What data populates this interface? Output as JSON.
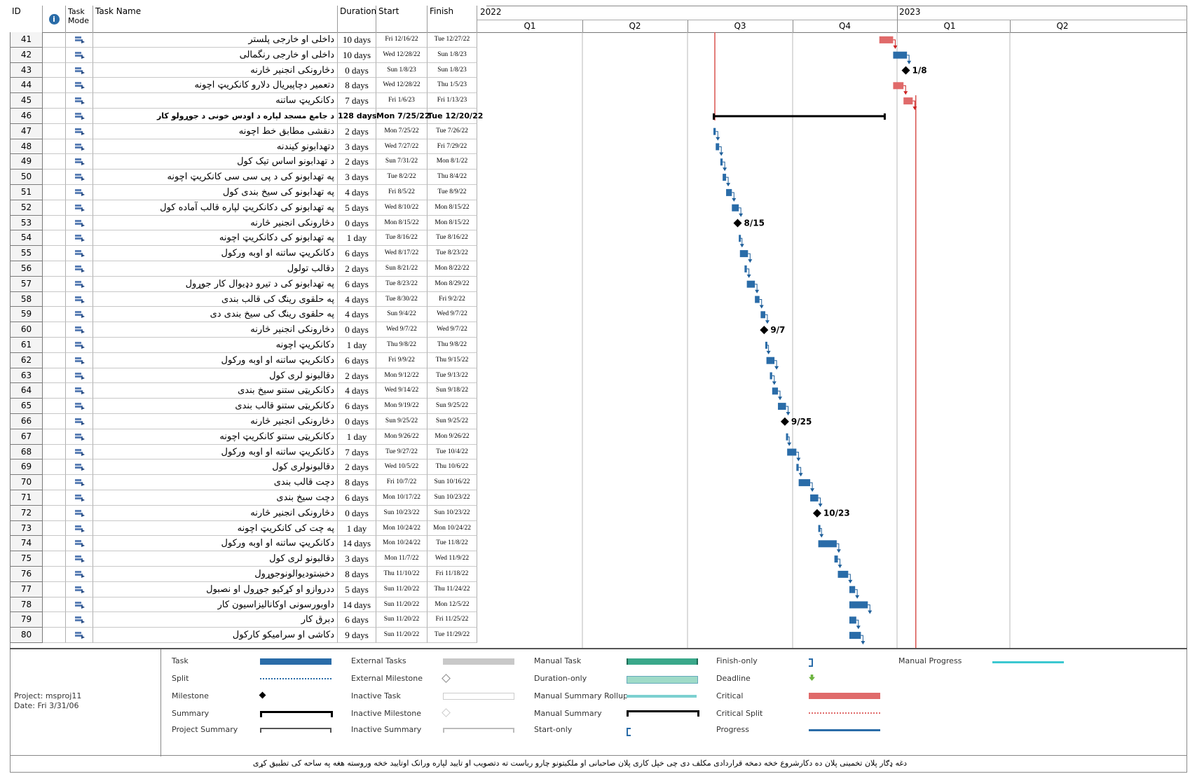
{
  "columns": {
    "id": "ID",
    "indicators": "ℹ",
    "mode": "Task Mode",
    "name": "Task Name",
    "duration": "Duration",
    "start": "Start",
    "finish": "Finish"
  },
  "timescale": {
    "years": [
      "2022",
      "2023"
    ],
    "quarters": [
      "Q1",
      "Q2",
      "Q3",
      "Q4",
      "Q1",
      "Q2"
    ]
  },
  "tasks": [
    {
      "id": "41",
      "name": "داخلی او خارجی پلستر",
      "duration": "10 days",
      "start": "Fri 12/16/22",
      "finish": "Tue 12/27/22"
    },
    {
      "id": "42",
      "name": "داخلی او خارجی رنگمالی",
      "duration": "10 days",
      "start": "Wed 12/28/22",
      "finish": "Sun 1/8/23"
    },
    {
      "id": "43",
      "name": "دڅارونکی انجنیر څارنه",
      "duration": "0 days",
      "start": "Sun 1/8/23",
      "finish": "Sun 1/8/23"
    },
    {
      "id": "44",
      "name": "دتعمیر دچاپیریال دلارو کانکریټ اچونه",
      "duration": "8 days",
      "start": "Wed 12/28/22",
      "finish": "Thu 1/5/23"
    },
    {
      "id": "45",
      "name": "دکانکریټ ساتنه",
      "duration": "7 days",
      "start": "Fri 1/6/23",
      "finish": "Fri 1/13/23"
    },
    {
      "id": "46",
      "name": "د جامع مسجد لپاره د اودس خونی د جوړولو کار",
      "duration": "128 days",
      "start": "Mon 7/25/22",
      "finish": "Tue 12/20/22",
      "summary": true
    },
    {
      "id": "47",
      "name": "دنقشی مطابق خط اچونه",
      "duration": "2 days",
      "start": "Mon 7/25/22",
      "finish": "Tue 7/26/22"
    },
    {
      "id": "48",
      "name": "دتهدابونو کیندنه",
      "duration": "3 days",
      "start": "Wed 7/27/22",
      "finish": "Fri 7/29/22"
    },
    {
      "id": "49",
      "name": "د تهدابونو اساس تیک کول",
      "duration": "2 days",
      "start": "Sun 7/31/22",
      "finish": "Mon 8/1/22"
    },
    {
      "id": "50",
      "name": "په تهدابونو کی د پی سی سی کانکریټ اچونه",
      "duration": "3 days",
      "start": "Tue 8/2/22",
      "finish": "Thu 8/4/22"
    },
    {
      "id": "51",
      "name": "په تهدابونو کی سیخ بندی کول",
      "duration": "4 days",
      "start": "Fri 8/5/22",
      "finish": "Tue 8/9/22"
    },
    {
      "id": "52",
      "name": "په تهدابونو کی دکانکریټ لپاره قالب آماده کول",
      "duration": "5 days",
      "start": "Wed 8/10/22",
      "finish": "Mon 8/15/22"
    },
    {
      "id": "53",
      "name": "دڅارونکی انجنیر څارنه",
      "duration": "0 days",
      "start": "Mon 8/15/22",
      "finish": "Mon 8/15/22"
    },
    {
      "id": "54",
      "name": "په تهدابونو کی دکانکریټ اچونه",
      "duration": "1 day",
      "start": "Tue 8/16/22",
      "finish": "Tue 8/16/22"
    },
    {
      "id": "55",
      "name": "دکانکریټ ساتنه او اوبه ورکول",
      "duration": "6 days",
      "start": "Wed 8/17/22",
      "finish": "Tue 8/23/22"
    },
    {
      "id": "56",
      "name": "دقالب تولول",
      "duration": "2 days",
      "start": "Sun 8/21/22",
      "finish": "Mon 8/22/22"
    },
    {
      "id": "57",
      "name": "په تهدابونو کی د تیرو دډیوال کار جوړول",
      "duration": "6 days",
      "start": "Tue 8/23/22",
      "finish": "Mon 8/29/22"
    },
    {
      "id": "58",
      "name": "په حلقوی رینګ کی قالب بندی",
      "duration": "4 days",
      "start": "Tue 8/30/22",
      "finish": "Fri 9/2/22"
    },
    {
      "id": "59",
      "name": "په حلقوی رینګ کی سیخ بندی دی",
      "duration": "4 days",
      "start": "Sun 9/4/22",
      "finish": "Wed 9/7/22"
    },
    {
      "id": "60",
      "name": "دڅارونکی انجنیر څارنه",
      "duration": "0 days",
      "start": "Wed 9/7/22",
      "finish": "Wed 9/7/22"
    },
    {
      "id": "61",
      "name": "دکانکریټ اچونه",
      "duration": "1 day",
      "start": "Thu 9/8/22",
      "finish": "Thu 9/8/22"
    },
    {
      "id": "62",
      "name": "دکانکریټ ساتنه او اوبه ورکول",
      "duration": "6 days",
      "start": "Fri 9/9/22",
      "finish": "Thu 9/15/22"
    },
    {
      "id": "63",
      "name": "دقالبونو لری کول",
      "duration": "2 days",
      "start": "Mon 9/12/22",
      "finish": "Tue 9/13/22"
    },
    {
      "id": "64",
      "name": "دکانکریټی ستنو سیخ بندی",
      "duration": "4 days",
      "start": "Wed 9/14/22",
      "finish": "Sun 9/18/22"
    },
    {
      "id": "65",
      "name": "دکانکریټی ستنو قالب بندی",
      "duration": "6 days",
      "start": "Mon 9/19/22",
      "finish": "Sun 9/25/22"
    },
    {
      "id": "66",
      "name": "دڅارونکی انجنیر څارنه",
      "duration": "0 days",
      "start": "Sun 9/25/22",
      "finish": "Sun 9/25/22"
    },
    {
      "id": "67",
      "name": "دکانکریټی ستنو کانکریټ اچونه",
      "duration": "1 day",
      "start": "Mon 9/26/22",
      "finish": "Mon 9/26/22"
    },
    {
      "id": "68",
      "name": "دکانکریټ ساتنه او اوبه ورکول",
      "duration": "7 days",
      "start": "Tue 9/27/22",
      "finish": "Tue 10/4/22"
    },
    {
      "id": "69",
      "name": "دقالبونولری کول",
      "duration": "2 days",
      "start": "Wed 10/5/22",
      "finish": "Thu 10/6/22"
    },
    {
      "id": "70",
      "name": "دچت قالب بندی",
      "duration": "8 days",
      "start": "Fri 10/7/22",
      "finish": "Sun 10/16/22"
    },
    {
      "id": "71",
      "name": "دچت سیخ بندی",
      "duration": "6 days",
      "start": "Mon 10/17/22",
      "finish": "Sun 10/23/22"
    },
    {
      "id": "72",
      "name": "دڅارونکی انجنیر څارنه",
      "duration": "0 days",
      "start": "Sun 10/23/22",
      "finish": "Sun 10/23/22"
    },
    {
      "id": "73",
      "name": "په چت کی کانکریټ اچونه",
      "duration": "1 day",
      "start": "Mon 10/24/22",
      "finish": "Mon 10/24/22"
    },
    {
      "id": "74",
      "name": "دکانکریټ ساتنه او اوبه ورکول",
      "duration": "14 days",
      "start": "Mon 10/24/22",
      "finish": "Tue 11/8/22"
    },
    {
      "id": "75",
      "name": "دقالبونو لری کول",
      "duration": "3 days",
      "start": "Mon 11/7/22",
      "finish": "Wed 11/9/22"
    },
    {
      "id": "76",
      "name": "دخښتودیوالونوجوړول",
      "duration": "8 days",
      "start": "Thu 11/10/22",
      "finish": "Fri 11/18/22"
    },
    {
      "id": "77",
      "name": "ددروازو او کړکیو جوړول او نصبول",
      "duration": "5 days",
      "start": "Sun 11/20/22",
      "finish": "Thu 11/24/22"
    },
    {
      "id": "78",
      "name": "داوبورسونی اوکانالیزاسیون کار",
      "duration": "14 days",
      "start": "Sun 11/20/22",
      "finish": "Mon 12/5/22"
    },
    {
      "id": "79",
      "name": "دبرق کار",
      "duration": "6 days",
      "start": "Sun 11/20/22",
      "finish": "Fri 11/25/22"
    },
    {
      "id": "80",
      "name": "دکاشی او سرامیکو کارکول",
      "duration": "9 days",
      "start": "Sun 11/20/22",
      "finish": "Tue 11/29/22"
    }
  ],
  "milestone_labels": [
    "1/8",
    "8/15",
    "9/7",
    "9/25",
    "10/23"
  ],
  "legend": {
    "project": "Project: msproj11",
    "date": "Date: Fri 3/31/06",
    "items": [
      "Task",
      "Split",
      "Milestone",
      "Summary",
      "Project Summary",
      "External Tasks",
      "External Milestone",
      "Inactive Task",
      "Inactive Milestone",
      "Inactive Summary",
      "Manual Task",
      "Duration-only",
      "Manual Summary Rollup",
      "Manual Summary",
      "Start-only",
      "Finish-only",
      "Deadline",
      "Critical",
      "Critical Split",
      "Progress",
      "Manual Progress"
    ]
  },
  "footer": "دغه ډګار پلان تخمینی پلان ده دکارشروع خخه دمخه قراردادی مکلف دی چی خپل کاری پلان صاحبانی او ملکیتونو چارو ریاست ته دتصویب او تایید لپاره ورانک اوتایید خخه وروسته هغه په ساحه کی تطبیق کړی",
  "colors": {
    "task": "#2a6ca8",
    "critical": "#e06a6a",
    "deadline_line": "#d9534f",
    "black": "#000000"
  }
}
